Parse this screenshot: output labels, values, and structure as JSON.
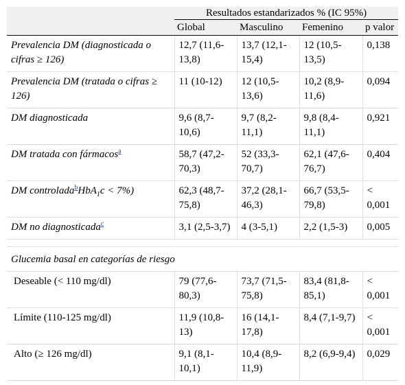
{
  "header": {
    "group_title": "Resultados estandarizados % (IC 95%)",
    "columns": [
      "Global",
      "Masculino",
      "Femenino",
      "p valor"
    ]
  },
  "rows": [
    {
      "label": "Prevalencia DM (diagnosticada o cifras ≥ 126)",
      "global": "12,7 (11,6-13,8)",
      "masculino": "13,7 (12,1-15,4)",
      "femenino": "12 (10,5-13,5)",
      "p": "0,138"
    },
    {
      "label": "Prevalencia DM (tratada o cifras ≥ 126)",
      "global": "11 (10-12)",
      "masculino": "12 (10,5-13,6)",
      "femenino": "10,2 (8,9-11,6)",
      "p": "0,094"
    },
    {
      "label": "DM diagnosticada",
      "global": "9,6 (8,7-10,6)",
      "masculino": "9,7 (8,2-11,1)",
      "femenino": "9,8 (8,4-11,1)",
      "p": "0,921"
    },
    {
      "label": "DM tratada con fármacos",
      "note": "a",
      "global": "58,7 (47,2-70,3)",
      "masculino": "52 (33,3-70,7)",
      "femenino": "62,1 (47,6-76,7)",
      "p": "0,404"
    },
    {
      "label_pre": "DM controlada",
      "note": "b",
      "label_mid": "HbA",
      "label_sub": "1",
      "label_post": "c < 7%)",
      "global": "62,3 (48,7-75,8)",
      "masculino": "37,2 (28,1-46,3)",
      "femenino": "66,7 (53,5-79,8)",
      "p": "< 0,001"
    },
    {
      "label": "DM no diagnosticada",
      "note": "c",
      "global": "3,1 (2,5-3,7)",
      "masculino": "4 (3-5,1)",
      "femenino": "2,2 (1,5-3)",
      "p": "0,005"
    }
  ],
  "section": {
    "title": "Glucemia basal en categorías de riesgo",
    "rows": [
      {
        "label": "Deseable (< 110 mg/dl)",
        "global": "79 (77,6-80,3)",
        "masculino": "73,7 (71,5-75,8)",
        "femenino": "83,4 (81,8-85,1)",
        "p": "< 0,001"
      },
      {
        "label": "Límite (110-125 mg/dl)",
        "global": "11,9 (10,8-13)",
        "masculino": "16 (14,1-17,8)",
        "femenino": "8,4 (7,1-9,7)",
        "p": "< 0,001"
      },
      {
        "label": "Alto (≥ 126 mg/dl)",
        "global": "9,1 (8,1-10,1)",
        "masculino": "10,4 (8,9-11,9)",
        "femenino": "8,2 (6,9-9,4)",
        "p": "0,029"
      }
    ]
  }
}
